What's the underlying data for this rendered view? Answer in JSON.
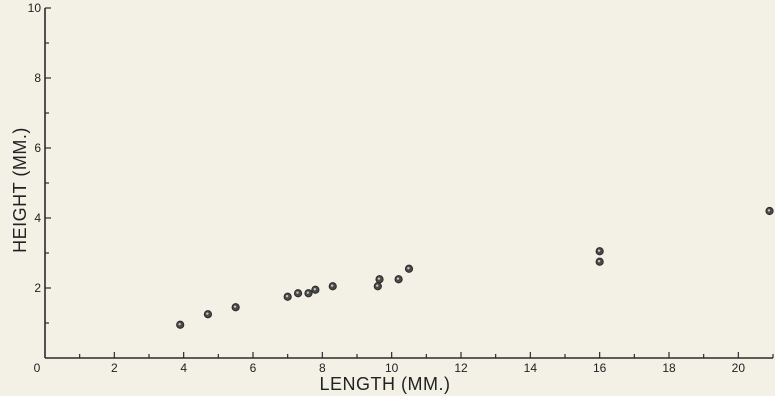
{
  "chart_data": {
    "type": "scatter",
    "title": "",
    "xlabel": "LENGTH (MM.)",
    "ylabel": "HEIGHT (MM.)",
    "xlim": [
      0,
      21
    ],
    "ylim": [
      0,
      10
    ],
    "x_ticks": [
      0,
      2,
      4,
      6,
      8,
      10,
      12,
      14,
      16,
      18,
      20
    ],
    "y_ticks": [
      0,
      2,
      4,
      6,
      8,
      10
    ],
    "x_tick_labels": [
      "0",
      "2",
      "4",
      "6",
      "8",
      "10",
      "12",
      "14",
      "16",
      "18",
      "20"
    ],
    "y_tick_labels": [
      "0",
      "2",
      "4",
      "6",
      "8",
      "10"
    ],
    "grid": false,
    "legend": "none",
    "series": [
      {
        "points": [
          {
            "x": 3.9,
            "y": 0.95
          },
          {
            "x": 4.7,
            "y": 1.25
          },
          {
            "x": 5.5,
            "y": 1.45
          },
          {
            "x": 7.0,
            "y": 1.75
          },
          {
            "x": 7.3,
            "y": 1.85
          },
          {
            "x": 7.6,
            "y": 1.85
          },
          {
            "x": 7.8,
            "y": 1.95
          },
          {
            "x": 8.3,
            "y": 2.05
          },
          {
            "x": 9.6,
            "y": 2.05
          },
          {
            "x": 9.65,
            "y": 2.25
          },
          {
            "x": 10.2,
            "y": 2.25
          },
          {
            "x": 10.5,
            "y": 2.55
          },
          {
            "x": 16.0,
            "y": 3.05
          },
          {
            "x": 16.0,
            "y": 2.75
          },
          {
            "x": 20.9,
            "y": 4.2
          }
        ]
      }
    ],
    "colors": {
      "ink": "#2a2a2a",
      "background": "#f3f1e6"
    }
  }
}
